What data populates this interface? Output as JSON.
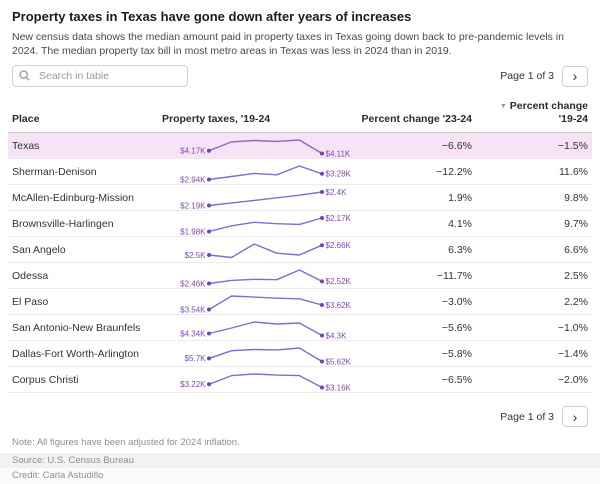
{
  "header": {
    "title": "Property taxes in Texas have gone down after years of increases",
    "description": "New census data shows the median amount paid in property taxes in Texas going down back to pre-pandemic levels in 2024. The median property tax bill in most metro areas in Texas was less in 2024 than in 2019."
  },
  "search": {
    "placeholder": "Search in table"
  },
  "pagination": {
    "label": "Page 1 of 3"
  },
  "icons": {
    "sort_desc": "▼",
    "chevron_right": "›"
  },
  "colors": {
    "spark_line": "#8a68cc",
    "spark_dot": "#6f46ab",
    "spark_label": "#8347b6",
    "highlight_row_bg": "#f7e3f6",
    "header_border": "#c9c9c9",
    "row_border": "#ebebeb"
  },
  "table": {
    "columns": {
      "place": "Place",
      "spark": "Property taxes, '19-24",
      "change_23_24": "Percent change '23-24",
      "change_19_24_line1": "Percent change",
      "change_19_24_line2": "'19-24"
    }
  },
  "chart_data": {
    "type": "table",
    "title": "Property taxes in Texas have gone down after years of increases",
    "columns": [
      "Place",
      "Property taxes, '19-24",
      "Percent change '23-24",
      "Percent change '19-24"
    ],
    "sparkline_type": "line",
    "sparkline_years": [
      2019,
      2020,
      2021,
      2022,
      2023,
      2024
    ],
    "sparkline_units": "USD thousands, median property tax paid",
    "sort": {
      "column": "Percent change '19-24",
      "direction": "desc",
      "pinned_first_row": "Texas"
    },
    "rows": [
      {
        "place": "Texas",
        "highlight": true,
        "values": [
          4.17,
          4.36,
          4.39,
          4.37,
          4.4,
          4.11
        ],
        "start_label": "$4.17K",
        "end_label": "$4.11K",
        "change_23_24": "−6.6%",
        "change_19_24": "−1.5%"
      },
      {
        "place": "Sherman-Denison",
        "highlight": false,
        "values": [
          2.94,
          3.12,
          3.3,
          3.22,
          3.74,
          3.28
        ],
        "start_label": "$2.94K",
        "end_label": "$3.28K",
        "change_23_24": "−12.2%",
        "change_19_24": "11.6%"
      },
      {
        "place": "McAllen-Edinburg-Mission",
        "highlight": false,
        "values": [
          2.19,
          2.23,
          2.27,
          2.31,
          2.35,
          2.4
        ],
        "start_label": "$2.19K",
        "end_label": "$2.4K",
        "change_23_24": "1.9%",
        "change_19_24": "9.8%"
      },
      {
        "place": "Brownsville-Harlingen",
        "highlight": false,
        "values": [
          1.98,
          2.06,
          2.11,
          2.09,
          2.08,
          2.17
        ],
        "start_label": "$1.98K",
        "end_label": "$2.17K",
        "change_23_24": "4.1%",
        "change_19_24": "9.7%"
      },
      {
        "place": "San Angelo",
        "highlight": false,
        "values": [
          2.5,
          2.46,
          2.68,
          2.53,
          2.5,
          2.66
        ],
        "start_label": "$2.5K",
        "end_label": "$2.66K",
        "change_23_24": "6.3%",
        "change_19_24": "6.6%"
      },
      {
        "place": "Odessa",
        "highlight": false,
        "values": [
          2.46,
          2.55,
          2.58,
          2.57,
          2.85,
          2.52
        ],
        "start_label": "$2.46K",
        "end_label": "$2.52K",
        "change_23_24": "−11.7%",
        "change_19_24": "2.5%"
      },
      {
        "place": "El Paso",
        "highlight": false,
        "values": [
          3.54,
          3.78,
          3.76,
          3.74,
          3.73,
          3.62
        ],
        "start_label": "$3.54K",
        "end_label": "$3.62K",
        "change_23_24": "−3.0%",
        "change_19_24": "2.2%"
      },
      {
        "place": "San Antonio-New Braunfels",
        "highlight": false,
        "values": [
          4.34,
          4.45,
          4.57,
          4.53,
          4.55,
          4.3
        ],
        "start_label": "$4.34K",
        "end_label": "$4.3K",
        "change_23_24": "−5.6%",
        "change_19_24": "−1.0%"
      },
      {
        "place": "Dallas-Fort Worth-Arlington",
        "highlight": false,
        "values": [
          5.7,
          5.9,
          5.93,
          5.92,
          5.97,
          5.62
        ],
        "start_label": "$5.7K",
        "end_label": "$5.62K",
        "change_23_24": "−5.8%",
        "change_19_24": "−1.4%"
      },
      {
        "place": "Corpus Christi",
        "highlight": false,
        "values": [
          3.22,
          3.38,
          3.41,
          3.39,
          3.38,
          3.16
        ],
        "start_label": "$3.22K",
        "end_label": "$3.16K",
        "change_23_24": "−6.5%",
        "change_19_24": "−2.0%"
      }
    ]
  },
  "footer": {
    "note": "Note: All figures have been adjusted for 2024 inflation.",
    "source": "Source: U.S. Census Bureau",
    "credit": "Credit: Carla Astudillo"
  }
}
